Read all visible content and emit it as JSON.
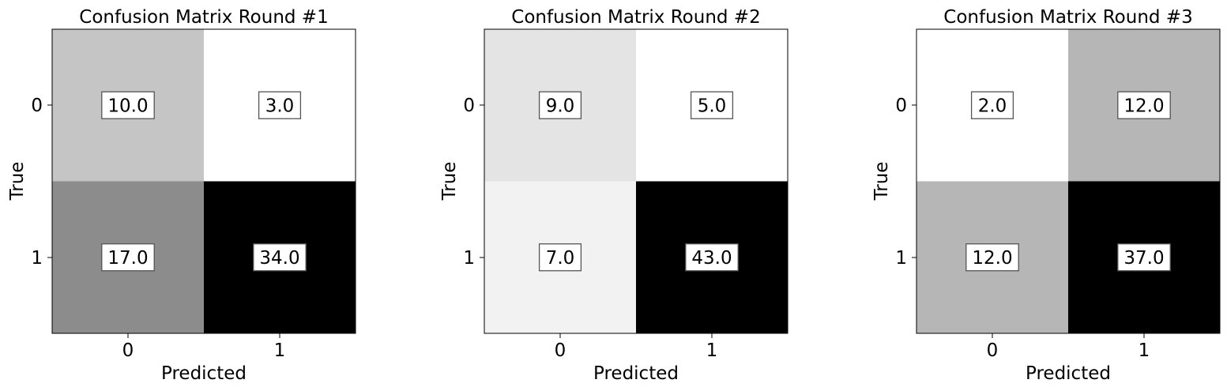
{
  "chart_data": [
    {
      "type": "heatmap",
      "title": "Confusion Matrix Round #1",
      "xlabel": "Predicted",
      "ylabel": "True",
      "x_categories": [
        "0",
        "1"
      ],
      "y_categories": [
        "0",
        "1"
      ],
      "values": [
        [
          10.0,
          3.0
        ],
        [
          17.0,
          34.0
        ]
      ],
      "cell_labels": [
        [
          "10.0",
          "3.0"
        ],
        [
          "17.0",
          "34.0"
        ]
      ],
      "colormap": "grayscale, white = min, black = max"
    },
    {
      "type": "heatmap",
      "title": "Confusion Matrix Round #2",
      "xlabel": "Predicted",
      "ylabel": "True",
      "x_categories": [
        "0",
        "1"
      ],
      "y_categories": [
        "0",
        "1"
      ],
      "values": [
        [
          9.0,
          5.0
        ],
        [
          7.0,
          43.0
        ]
      ],
      "cell_labels": [
        [
          "9.0",
          "5.0"
        ],
        [
          "7.0",
          "43.0"
        ]
      ],
      "colormap": "grayscale, white = min, black = max"
    },
    {
      "type": "heatmap",
      "title": "Confusion Matrix Round #3",
      "xlabel": "Predicted",
      "ylabel": "True",
      "x_categories": [
        "0",
        "1"
      ],
      "y_categories": [
        "0",
        "1"
      ],
      "values": [
        [
          2.0,
          12.0
        ],
        [
          12.0,
          37.0
        ]
      ],
      "cell_labels": [
        [
          "2.0",
          "12.0"
        ],
        [
          "12.0",
          "37.0"
        ]
      ],
      "colormap": "grayscale, white = min, black = max"
    }
  ]
}
